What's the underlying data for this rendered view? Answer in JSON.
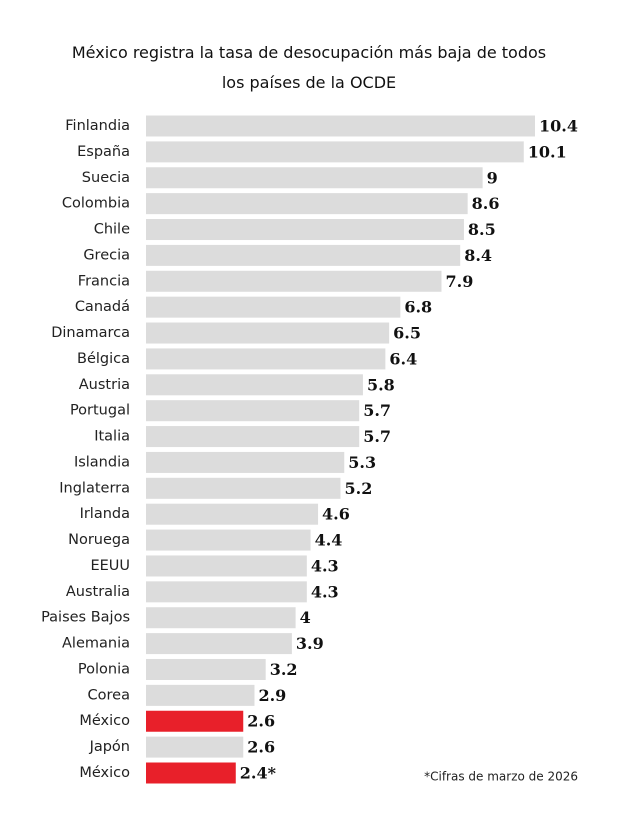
{
  "chart_data": {
    "type": "bar",
    "orientation": "horizontal",
    "title": "México registra la tasa de desocupación más baja de todos los países de la OCDE",
    "categories": [
      "Finlandia",
      "España",
      "Suecia",
      "Colombia",
      "Chile",
      "Grecia",
      "Francia",
      "Canadá",
      "Dinamarca",
      "Bélgica",
      "Austria",
      "Portugal",
      "Italia",
      "Islandia",
      "Inglaterra",
      "Irlanda",
      "Noruega",
      "EEUU",
      "Australia",
      "Paises Bajos",
      "Alemania",
      "Polonia",
      "Corea",
      "México",
      "Japón",
      "México"
    ],
    "values": [
      10.4,
      10.1,
      9,
      8.6,
      8.5,
      8.4,
      7.9,
      6.8,
      6.5,
      6.4,
      5.8,
      5.7,
      5.7,
      5.3,
      5.2,
      4.6,
      4.4,
      4.3,
      4.3,
      4,
      3.9,
      3.2,
      2.9,
      2.6,
      2.6,
      2.4
    ],
    "value_labels": [
      "10.4",
      "10.1",
      "9",
      "8.6",
      "8.5",
      "8.4",
      "7.9",
      "6.8",
      "6.5",
      "6.4",
      "5.8",
      "5.7",
      "5.7",
      "5.3",
      "5.2",
      "4.6",
      "4.4",
      "4.3",
      "4.3",
      "4",
      "3.9",
      "3.2",
      "2.9",
      "2.6",
      "2.6",
      "2.4*"
    ],
    "colors": [
      "#dcdcdc",
      "#dcdcdc",
      "#dcdcdc",
      "#dcdcdc",
      "#dcdcdc",
      "#dcdcdc",
      "#dcdcdc",
      "#dcdcdc",
      "#dcdcdc",
      "#dcdcdc",
      "#dcdcdc",
      "#dcdcdc",
      "#dcdcdc",
      "#dcdcdc",
      "#dcdcdc",
      "#dcdcdc",
      "#dcdcdc",
      "#dcdcdc",
      "#dcdcdc",
      "#dcdcdc",
      "#dcdcdc",
      "#dcdcdc",
      "#dcdcdc",
      "#e8202a",
      "#dcdcdc",
      "#e8202a"
    ],
    "footnote": "*Cifras de marzo de 2026"
  }
}
